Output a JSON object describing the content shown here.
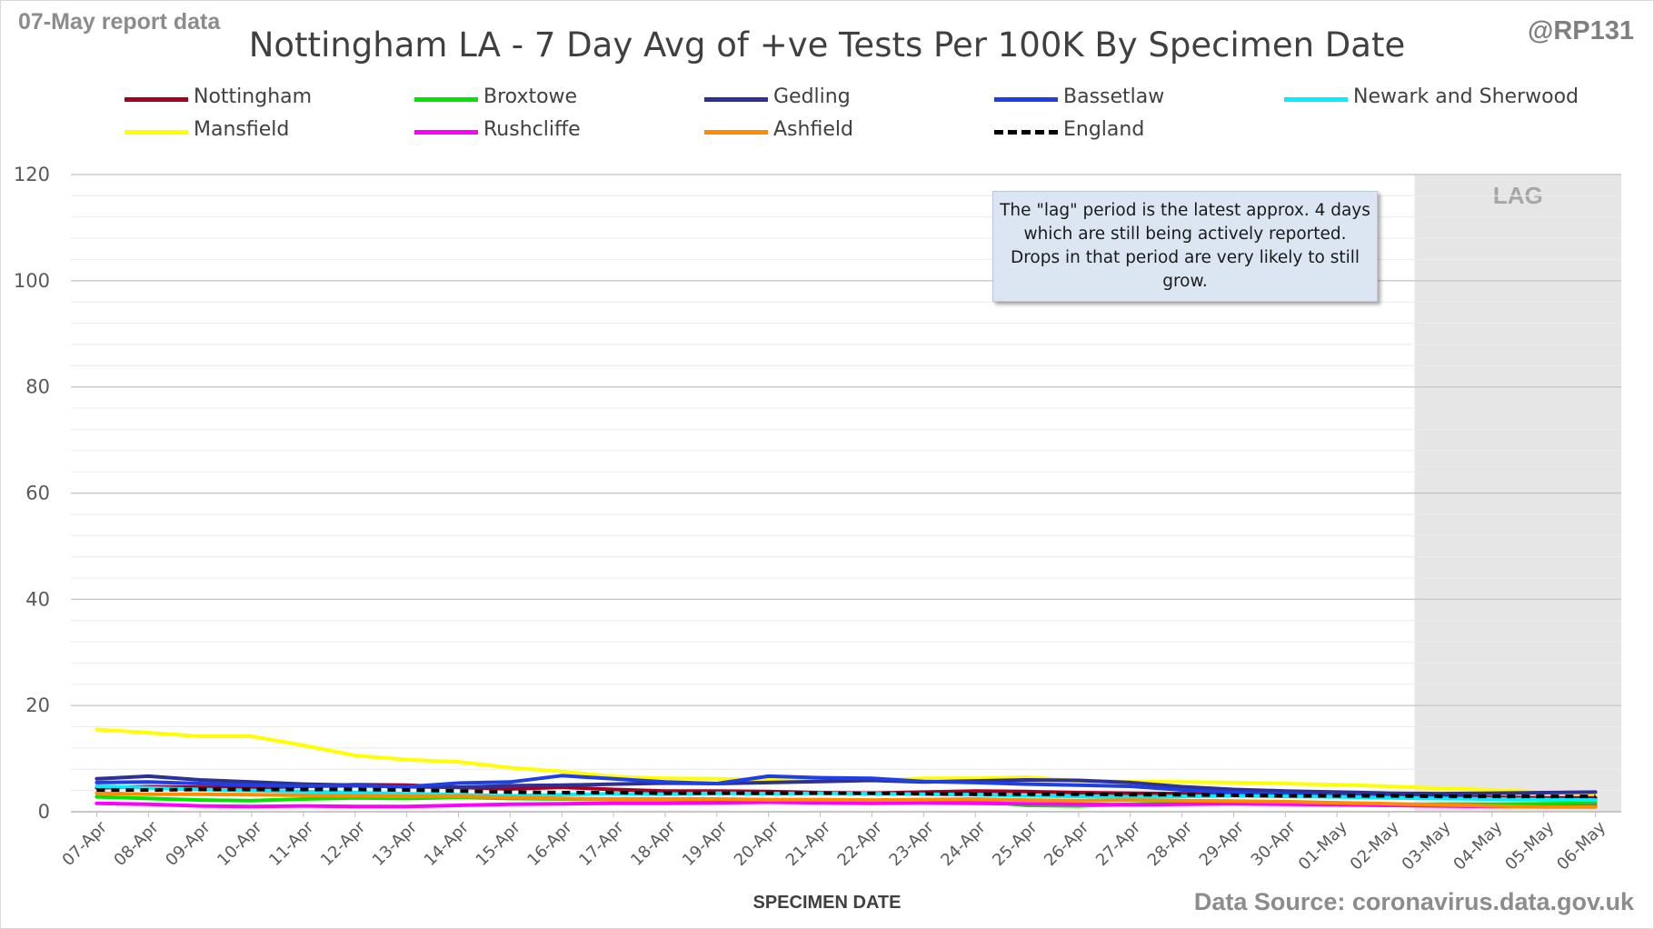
{
  "header": {
    "report_label": "07-May report data",
    "handle": "@RP131",
    "title": "Nottingham LA - 7 Day Avg of +ve Tests Per 100K By Specimen Date",
    "source": "Data Source: coronavirus.data.gov.uk"
  },
  "annotations": {
    "note": "The \"lag\" period is the latest approx. 4 days which are still being actively reported. Drops in that period are very likely to still grow.",
    "lag_label": "LAG"
  },
  "chart_data": {
    "type": "line",
    "title": "Nottingham LA - 7 Day Avg of +ve Tests Per 100K By Specimen Date",
    "xlabel": "SPECIMEN DATE",
    "ylabel": "",
    "ylim": [
      0,
      120
    ],
    "yticks": [
      0,
      20,
      40,
      60,
      80,
      100,
      120
    ],
    "grid": true,
    "legend_position": "top",
    "lag_start": "03-May",
    "x": [
      "07-Apr",
      "08-Apr",
      "09-Apr",
      "10-Apr",
      "11-Apr",
      "12-Apr",
      "13-Apr",
      "14-Apr",
      "15-Apr",
      "16-Apr",
      "17-Apr",
      "18-Apr",
      "19-Apr",
      "20-Apr",
      "21-Apr",
      "22-Apr",
      "23-Apr",
      "24-Apr",
      "25-Apr",
      "26-Apr",
      "27-Apr",
      "28-Apr",
      "29-Apr",
      "30-Apr",
      "01-May",
      "02-May",
      "03-May",
      "04-May",
      "05-May",
      "06-May"
    ],
    "series": [
      {
        "name": "Nottingham",
        "color": "#a50021",
        "dashed": false,
        "values": [
          4.5,
          4.7,
          4.6,
          4.5,
          4.8,
          5.1,
          5.0,
          4.6,
          4.3,
          4.6,
          4.2,
          3.9,
          3.9,
          3.8,
          3.6,
          3.5,
          3.7,
          3.9,
          3.8,
          3.6,
          3.5,
          3.4,
          3.2,
          3.1,
          3.0,
          2.9,
          2.8,
          2.7,
          2.6,
          2.6
        ]
      },
      {
        "name": "Broxtowe",
        "color": "#00e600",
        "dashed": false,
        "values": [
          2.8,
          2.5,
          2.2,
          2.1,
          2.4,
          2.6,
          2.5,
          2.7,
          2.5,
          2.4,
          2.3,
          2.3,
          2.1,
          1.9,
          2.0,
          2.1,
          2.3,
          2.0,
          1.2,
          1.1,
          1.4,
          1.6,
          1.8,
          1.7,
          1.5,
          1.3,
          1.4,
          1.4,
          1.5,
          1.6
        ]
      },
      {
        "name": "Gedling",
        "color": "#2e3192",
        "dashed": false,
        "values": [
          6.2,
          6.7,
          6.0,
          5.6,
          5.2,
          5.0,
          4.7,
          4.6,
          4.9,
          5.0,
          5.2,
          5.4,
          5.3,
          5.5,
          5.7,
          5.9,
          5.6,
          5.8,
          6.0,
          5.9,
          5.5,
          4.7,
          4.2,
          3.9,
          3.7,
          3.5,
          3.4,
          3.5,
          3.6,
          3.7
        ]
      },
      {
        "name": "Bassetlaw",
        "color": "#1f3fe6",
        "dashed": false,
        "values": [
          5.5,
          5.6,
          5.3,
          5.0,
          4.8,
          4.9,
          4.7,
          5.4,
          5.6,
          6.8,
          6.2,
          5.6,
          5.3,
          6.7,
          6.4,
          6.3,
          5.7,
          5.5,
          5.2,
          5.0,
          4.8,
          4.1,
          3.6,
          3.3,
          3.0,
          2.8,
          2.6,
          2.4,
          2.3,
          2.2
        ]
      },
      {
        "name": "Newark and Sherwood",
        "color": "#00f0ff",
        "dashed": false,
        "values": [
          4.8,
          4.5,
          4.2,
          4.0,
          3.8,
          3.6,
          3.4,
          3.2,
          3.0,
          3.2,
          3.4,
          3.3,
          3.5,
          3.4,
          3.5,
          3.4,
          3.3,
          3.2,
          3.0,
          2.9,
          2.8,
          2.9,
          3.0,
          2.9,
          2.8,
          2.6,
          2.5,
          2.4,
          2.3,
          2.2
        ]
      },
      {
        "name": "Mansfield",
        "color": "#ffff00",
        "dashed": false,
        "values": [
          15.5,
          14.9,
          14.2,
          14.2,
          12.5,
          10.6,
          9.8,
          9.4,
          8.3,
          7.6,
          6.6,
          6.3,
          6.2,
          6.0,
          5.8,
          5.9,
          6.3,
          6.3,
          6.5,
          5.8,
          5.7,
          5.6,
          5.5,
          5.3,
          5.1,
          4.8,
          4.4,
          4.1,
          3.7,
          3.4
        ]
      },
      {
        "name": "Rushcliffe",
        "color": "#ff00ff",
        "dashed": false,
        "values": [
          1.6,
          1.4,
          1.1,
          1.0,
          1.1,
          1.0,
          1.0,
          1.2,
          1.4,
          1.5,
          1.6,
          1.6,
          1.7,
          1.8,
          1.7,
          1.6,
          1.7,
          1.6,
          1.5,
          1.4,
          1.3,
          1.4,
          1.5,
          1.4,
          1.3,
          1.2,
          1.1,
          1.0,
          1.0,
          1.1
        ]
      },
      {
        "name": "Ashfield",
        "color": "#ff8c00",
        "dashed": false,
        "values": [
          3.5,
          3.3,
          3.3,
          3.2,
          3.1,
          3.0,
          2.9,
          2.9,
          2.7,
          2.5,
          2.4,
          2.4,
          2.4,
          2.3,
          2.3,
          2.2,
          2.3,
          2.4,
          2.2,
          2.1,
          2.2,
          2.1,
          2.0,
          1.9,
          1.7,
          1.5,
          1.3,
          1.1,
          0.9,
          0.9
        ]
      },
      {
        "name": "England",
        "color": "#000000",
        "dashed": true,
        "values": [
          4.1,
          4.1,
          4.2,
          4.2,
          4.2,
          4.2,
          4.1,
          3.9,
          3.7,
          3.6,
          3.6,
          3.5,
          3.5,
          3.5,
          3.5,
          3.5,
          3.4,
          3.3,
          3.3,
          3.3,
          3.2,
          3.2,
          3.1,
          3.0,
          3.0,
          3.0,
          2.9,
          2.9,
          2.9,
          2.9
        ]
      }
    ]
  }
}
